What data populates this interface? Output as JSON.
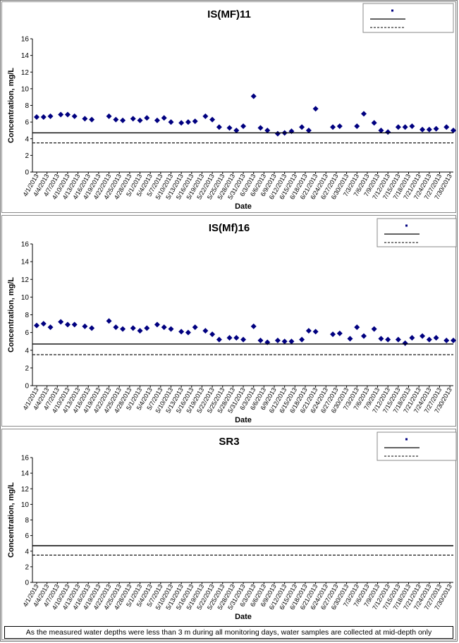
{
  "note": "As the measured water depths were less than 3 m during all monitoring days, water samples are collected  at mid-depth only",
  "chart_data": [
    {
      "type": "scatter",
      "title": "IS(MF)11",
      "xlabel": "Date",
      "ylabel": "Concentration, mg/L",
      "ylim": [
        0,
        16
      ],
      "yticks": [
        0,
        2,
        4,
        6,
        8,
        10,
        12,
        14,
        16
      ],
      "grid": false,
      "legend_position": "top-right",
      "x_tick_labels": [
        "4/1/2013",
        "4/4/2013",
        "4/7/2013",
        "4/10/2013",
        "4/13/2013",
        "4/16/2013",
        "4/19/2013",
        "4/22/2013",
        "4/25/2013",
        "4/28/2013",
        "5/1/2013",
        "5/4/2013",
        "5/7/2013",
        "5/10/2013",
        "5/13/2013",
        "5/16/2013",
        "5/19/2013",
        "5/22/2013",
        "5/25/2013",
        "5/28/2013",
        "5/31/2013",
        "6/3/2013",
        "6/6/2013",
        "6/9/2013",
        "6/12/2013",
        "6/15/2013",
        "6/18/2013",
        "6/21/2013",
        "6/24/2013",
        "6/27/2013",
        "6/30/2013",
        "7/3/2013",
        "7/6/2013",
        "7/9/2013",
        "7/12/2013",
        "7/15/2013",
        "7/18/2013",
        "7/21/2013",
        "7/24/2013",
        "7/27/2013",
        "7/30/2013"
      ],
      "series": [
        {
          "kind": "points",
          "color": "#000080",
          "x": [
            "4/1/2013",
            "4/3/2013",
            "4/5/2013",
            "4/8/2013",
            "4/10/2013",
            "4/12/2013",
            "4/15/2013",
            "4/17/2013",
            "4/22/2013",
            "4/24/2013",
            "4/26/2013",
            "4/29/2013",
            "5/1/2013",
            "5/3/2013",
            "5/6/2013",
            "5/8/2013",
            "5/10/2013",
            "5/13/2013",
            "5/15/2013",
            "5/17/2013",
            "5/20/2013",
            "5/22/2013",
            "5/24/2013",
            "5/27/2013",
            "5/29/2013",
            "5/31/2013",
            "6/3/2013",
            "6/5/2013",
            "6/7/2013",
            "6/10/2013",
            "6/12/2013",
            "6/14/2013",
            "6/17/2013",
            "6/19/2013",
            "6/21/2013",
            "6/26/2013",
            "6/28/2013",
            "7/3/2013",
            "7/5/2013",
            "7/8/2013",
            "7/10/2013",
            "7/12/2013",
            "7/15/2013",
            "7/17/2013",
            "7/19/2013",
            "7/22/2013",
            "7/24/2013",
            "7/26/2013",
            "7/29/2013",
            "7/31/2013"
          ],
          "y": [
            6.6,
            6.6,
            6.7,
            6.9,
            6.9,
            6.7,
            6.4,
            6.3,
            6.7,
            6.3,
            6.2,
            6.4,
            6.2,
            6.5,
            6.2,
            6.5,
            6.0,
            5.9,
            6.0,
            6.1,
            6.7,
            6.3,
            5.4,
            5.3,
            5.0,
            5.5,
            9.1,
            5.3,
            5.0,
            4.6,
            4.7,
            4.9,
            5.4,
            5.0,
            7.6,
            5.4,
            5.5,
            5.5,
            7.0,
            5.9,
            5.0,
            4.8,
            5.4,
            5.4,
            5.5,
            5.1,
            5.1,
            5.2,
            5.4,
            5.0
          ]
        },
        {
          "kind": "hline",
          "style": "solid",
          "y": 4.7
        },
        {
          "kind": "hline",
          "style": "dashed",
          "y": 3.5
        }
      ]
    },
    {
      "type": "scatter",
      "title": "IS(Mf)16",
      "xlabel": "Date",
      "ylabel": "Concentration, mg/L",
      "ylim": [
        0,
        16
      ],
      "yticks": [
        0,
        2,
        4,
        6,
        8,
        10,
        12,
        14,
        16
      ],
      "grid": false,
      "legend_position": "top-right",
      "x_tick_labels": [
        "4/1/2013",
        "4/4/2013",
        "4/7/2013",
        "4/10/2013",
        "4/13/2013",
        "4/16/2013",
        "4/19/2013",
        "4/22/2013",
        "4/25/2013",
        "4/28/2013",
        "5/1/2013",
        "5/4/2013",
        "5/7/2013",
        "5/10/2013",
        "5/13/2013",
        "5/16/2013",
        "5/19/2013",
        "5/22/2013",
        "5/25/2013",
        "5/28/2013",
        "5/31/2013",
        "6/3/2013",
        "6/6/2013",
        "6/9/2013",
        "6/12/2013",
        "6/15/2013",
        "6/18/2013",
        "6/21/2013",
        "6/24/2013",
        "6/27/2013",
        "6/30/2013",
        "7/3/2013",
        "7/6/2013",
        "7/9/2013",
        "7/12/2013",
        "7/15/2013",
        "7/18/2013",
        "7/21/2013",
        "7/24/2013",
        "7/27/2013",
        "7/30/2013"
      ],
      "series": [
        {
          "kind": "points",
          "color": "#000080",
          "x": [
            "4/1/2013",
            "4/3/2013",
            "4/5/2013",
            "4/8/2013",
            "4/10/2013",
            "4/12/2013",
            "4/15/2013",
            "4/17/2013",
            "4/22/2013",
            "4/24/2013",
            "4/26/2013",
            "4/29/2013",
            "5/1/2013",
            "5/3/2013",
            "5/6/2013",
            "5/8/2013",
            "5/10/2013",
            "5/13/2013",
            "5/15/2013",
            "5/17/2013",
            "5/20/2013",
            "5/22/2013",
            "5/24/2013",
            "5/27/2013",
            "5/29/2013",
            "5/31/2013",
            "6/3/2013",
            "6/5/2013",
            "6/7/2013",
            "6/10/2013",
            "6/12/2013",
            "6/14/2013",
            "6/17/2013",
            "6/19/2013",
            "6/21/2013",
            "6/26/2013",
            "6/28/2013",
            "7/1/2013",
            "7/3/2013",
            "7/5/2013",
            "7/8/2013",
            "7/10/2013",
            "7/12/2013",
            "7/15/2013",
            "7/17/2013",
            "7/19/2013",
            "7/22/2013",
            "7/24/2013",
            "7/26/2013",
            "7/29/2013",
            "7/31/2013"
          ],
          "y": [
            6.8,
            7.0,
            6.6,
            7.2,
            6.9,
            6.9,
            6.7,
            6.5,
            7.3,
            6.6,
            6.4,
            6.5,
            6.2,
            6.5,
            6.9,
            6.6,
            6.4,
            6.1,
            6.0,
            6.6,
            6.2,
            5.8,
            5.2,
            5.4,
            5.4,
            5.2,
            6.7,
            5.1,
            4.9,
            5.1,
            5.0,
            5.0,
            5.2,
            6.2,
            6.1,
            5.8,
            5.9,
            5.3,
            6.6,
            5.6,
            6.4,
            5.3,
            5.2,
            5.2,
            4.8,
            5.4,
            5.6,
            5.2,
            5.4,
            5.1,
            5.1
          ]
        },
        {
          "kind": "hline",
          "style": "solid",
          "y": 4.7
        },
        {
          "kind": "hline",
          "style": "dashed",
          "y": 3.5
        }
      ]
    },
    {
      "type": "scatter",
      "title": "SR3",
      "xlabel": "Date",
      "ylabel": "Concentration, mg/L",
      "ylim": [
        0,
        16
      ],
      "yticks": [
        0,
        2,
        4,
        6,
        8,
        10,
        12,
        14,
        16
      ],
      "grid": false,
      "legend_position": "top-right",
      "x_tick_labels": [
        "4/1/2013",
        "4/4/2013",
        "4/7/2013",
        "4/10/2013",
        "4/13/2013",
        "4/16/2013",
        "4/19/2013",
        "4/22/2013",
        "4/25/2013",
        "4/28/2013",
        "5/1/2013",
        "5/4/2013",
        "5/7/2013",
        "5/10/2013",
        "5/13/2013",
        "5/16/2013",
        "5/19/2013",
        "5/22/2013",
        "5/25/2013",
        "5/28/2013",
        "5/31/2013",
        "6/3/2013",
        "6/6/2013",
        "6/9/2013",
        "6/12/2013",
        "6/15/2013",
        "6/18/2013",
        "6/21/2013",
        "6/24/2013",
        "6/27/2013",
        "6/30/2013",
        "7/3/2013",
        "7/6/2013",
        "7/9/2013",
        "7/12/2013",
        "7/15/2013",
        "7/18/2013",
        "7/21/2013",
        "7/24/2013",
        "7/27/2013",
        "7/30/2013"
      ],
      "series": [
        {
          "kind": "points",
          "color": "#000080",
          "x": [],
          "y": []
        },
        {
          "kind": "hline",
          "style": "solid",
          "y": 4.7
        },
        {
          "kind": "hline",
          "style": "dashed",
          "y": 3.5
        }
      ]
    }
  ]
}
